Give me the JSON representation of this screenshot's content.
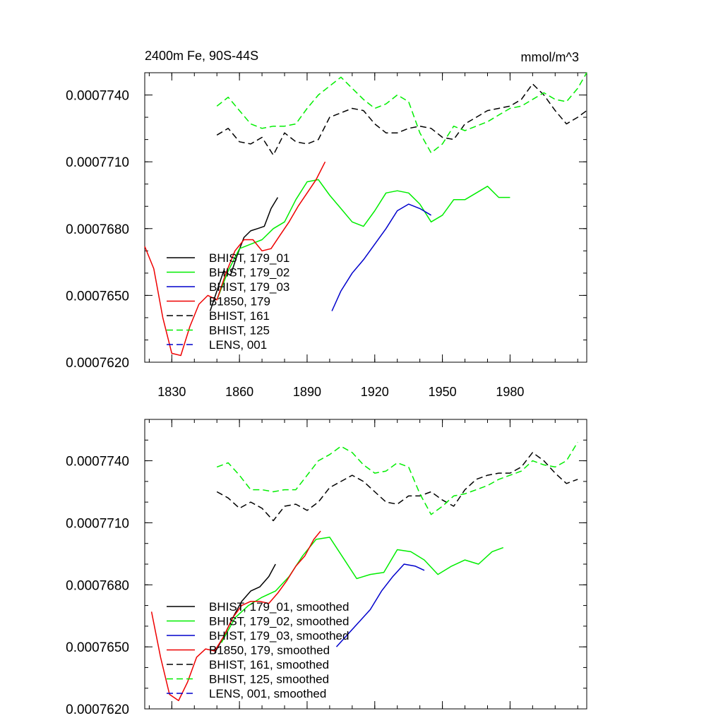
{
  "figure": {
    "title_left": "2400m Fe, 90S-44S",
    "title_right": "mmol/m^3"
  },
  "chart_data": [
    {
      "type": "line",
      "title": "2400m Fe, 90S-44S",
      "units": "mmol/m^3",
      "xlim": [
        1818,
        2014
      ],
      "ylim": [
        0.000762,
        0.000775
      ],
      "xticks": [
        1830,
        1860,
        1890,
        1920,
        1950,
        1980
      ],
      "xtick_labels": [
        "1830",
        "1860",
        "1890",
        "1920",
        "1950",
        "1980"
      ],
      "yticks": [
        0.000762,
        0.000765,
        0.000768,
        0.000771,
        0.000774
      ],
      "ytick_labels": [
        "0.0007620",
        "0.0007650",
        "0.0007680",
        "0.0007710",
        "0.0007740"
      ],
      "legend": "bottom-left",
      "series": [
        {
          "name": "BHIST, 179_01",
          "color": "#000000",
          "dash": "solid",
          "x": [
            1847,
            1850,
            1853,
            1856,
            1859,
            1862,
            1865,
            1868,
            1871,
            1874,
            1877
          ],
          "y": [
            0.0007643,
            0.0007652,
            0.0007661,
            0.0007659,
            0.0007668,
            0.0007676,
            0.0007679,
            0.000768,
            0.0007681,
            0.0007689,
            0.0007694
          ]
        },
        {
          "name": "BHIST, 179_02",
          "color": "#00ee00",
          "dash": "solid",
          "x": [
            1850,
            1855,
            1860,
            1865,
            1870,
            1875,
            1880,
            1885,
            1890,
            1895,
            1900,
            1905,
            1910,
            1915,
            1920,
            1925,
            1930,
            1935,
            1940,
            1945,
            1950,
            1955,
            1960,
            1965,
            1970,
            1975,
            1980
          ],
          "y": [
            0.0007648,
            0.0007661,
            0.0007671,
            0.0007673,
            0.0007675,
            0.000768,
            0.0007683,
            0.0007693,
            0.0007701,
            0.0007702,
            0.0007695,
            0.0007689,
            0.0007683,
            0.0007681,
            0.0007688,
            0.0007696,
            0.0007697,
            0.0007696,
            0.0007691,
            0.0007683,
            0.0007686,
            0.0007693,
            0.0007693,
            0.0007696,
            0.0007699,
            0.0007694,
            0.0007694
          ]
        },
        {
          "name": "BHIST, 179_03",
          "color": "#0000cc",
          "dash": "solid",
          "x": [
            1901,
            1905,
            1910,
            1915,
            1920,
            1925,
            1930,
            1935,
            1940,
            1945
          ],
          "y": [
            0.0007643,
            0.0007652,
            0.000766,
            0.0007666,
            0.0007673,
            0.000768,
            0.0007688,
            0.0007691,
            0.0007689,
            0.0007686
          ]
        },
        {
          "name": "B1850, 179",
          "color": "#ee0000",
          "dash": "solid",
          "x": [
            1818,
            1822,
            1826,
            1830,
            1834,
            1838,
            1842,
            1846,
            1850,
            1854,
            1858,
            1862,
            1866,
            1870,
            1874,
            1878,
            1882,
            1886,
            1890,
            1894,
            1898
          ],
          "y": [
            0.0007672,
            0.0007662,
            0.000764,
            0.0007624,
            0.0007623,
            0.0007636,
            0.0007646,
            0.000765,
            0.0007648,
            0.000766,
            0.000767,
            0.0007675,
            0.0007675,
            0.000767,
            0.0007671,
            0.0007677,
            0.0007683,
            0.000769,
            0.0007696,
            0.0007702,
            0.000771
          ]
        },
        {
          "name": "BHIST, 161",
          "color": "#000000",
          "dash": "dashed",
          "x": [
            1850,
            1855,
            1860,
            1865,
            1870,
            1875,
            1880,
            1885,
            1890,
            1895,
            1900,
            1905,
            1910,
            1915,
            1920,
            1925,
            1930,
            1935,
            1940,
            1945,
            1950,
            1955,
            1960,
            1965,
            1970,
            1975,
            1980,
            1985,
            1990,
            1995,
            2000,
            2005,
            2010,
            2014
          ],
          "y": [
            0.0007722,
            0.0007725,
            0.0007719,
            0.0007718,
            0.0007721,
            0.0007713,
            0.0007723,
            0.0007719,
            0.0007718,
            0.000772,
            0.000773,
            0.0007732,
            0.0007734,
            0.0007733,
            0.0007727,
            0.0007723,
            0.0007723,
            0.0007725,
            0.0007726,
            0.0007725,
            0.0007721,
            0.000772,
            0.0007727,
            0.000773,
            0.0007733,
            0.0007734,
            0.0007735,
            0.0007738,
            0.0007745,
            0.000774,
            0.0007733,
            0.0007727,
            0.000773,
            0.0007733
          ]
        },
        {
          "name": "BHIST, 125",
          "color": "#00ee00",
          "dash": "dashed",
          "x": [
            1850,
            1855,
            1860,
            1865,
            1870,
            1875,
            1880,
            1885,
            1890,
            1895,
            1900,
            1905,
            1910,
            1915,
            1920,
            1925,
            1930,
            1935,
            1940,
            1945,
            1950,
            1955,
            1960,
            1965,
            1970,
            1975,
            1980,
            1985,
            1990,
            1995,
            2000,
            2005,
            2010,
            2014
          ],
          "y": [
            0.0007735,
            0.0007739,
            0.0007733,
            0.0007727,
            0.0007725,
            0.0007726,
            0.0007726,
            0.0007727,
            0.0007734,
            0.000774,
            0.0007744,
            0.0007748,
            0.0007743,
            0.0007738,
            0.0007734,
            0.0007736,
            0.000774,
            0.0007737,
            0.0007723,
            0.0007714,
            0.0007718,
            0.0007726,
            0.0007724,
            0.0007726,
            0.0007728,
            0.0007731,
            0.0007734,
            0.0007735,
            0.0007738,
            0.0007741,
            0.0007738,
            0.0007737,
            0.0007743,
            0.000775
          ]
        }
      ],
      "legend_entries": [
        {
          "label": "BHIST, 179_01",
          "color": "#000000",
          "dash": "solid"
        },
        {
          "label": "BHIST, 179_02",
          "color": "#00ee00",
          "dash": "solid"
        },
        {
          "label": "BHIST, 179_03",
          "color": "#0000cc",
          "dash": "solid"
        },
        {
          "label": "B1850, 179",
          "color": "#ee0000",
          "dash": "solid"
        },
        {
          "label": "BHIST, 161",
          "color": "#000000",
          "dash": "dashed"
        },
        {
          "label": "BHIST, 125",
          "color": "#00ee00",
          "dash": "dashed"
        },
        {
          "label": "LENS, 001",
          "color": "#0000cc",
          "dash": "dashed"
        }
      ]
    },
    {
      "type": "line",
      "xlim": [
        1818,
        2014
      ],
      "ylim": [
        0.000762,
        0.000776
      ],
      "xticks": [
        1830,
        1860,
        1890,
        1920,
        1950,
        1980
      ],
      "xtick_labels": [],
      "yticks": [
        0.000762,
        0.000765,
        0.000768,
        0.000771,
        0.000774
      ],
      "ytick_labels": [
        "0.0007620",
        "0.0007650",
        "0.0007680",
        "0.0007710",
        "0.0007740"
      ],
      "legend": "bottom-left",
      "series": [
        {
          "name": "BHIST, 179_01, smoothed",
          "color": "#000000",
          "dash": "solid",
          "x": [
            1849,
            1853,
            1857,
            1861,
            1865,
            1869,
            1873,
            1876
          ],
          "y": [
            0.0007647,
            0.0007655,
            0.0007664,
            0.0007672,
            0.0007677,
            0.0007679,
            0.0007684,
            0.000769
          ]
        },
        {
          "name": "BHIST, 179_02, smoothed",
          "color": "#00ee00",
          "dash": "solid",
          "x": [
            1852,
            1858,
            1864,
            1870,
            1876,
            1882,
            1888,
            1894,
            1900,
            1906,
            1912,
            1918,
            1924,
            1930,
            1936,
            1942,
            1948,
            1954,
            1960,
            1966,
            1972,
            1977
          ],
          "y": [
            0.0007652,
            0.0007664,
            0.000767,
            0.0007674,
            0.0007677,
            0.0007684,
            0.0007694,
            0.0007702,
            0.0007703,
            0.0007693,
            0.0007683,
            0.0007685,
            0.0007686,
            0.0007697,
            0.0007696,
            0.0007692,
            0.0007685,
            0.0007689,
            0.0007692,
            0.000769,
            0.0007696,
            0.0007698
          ]
        },
        {
          "name": "BHIST, 179_03, smoothed",
          "color": "#0000cc",
          "dash": "solid",
          "x": [
            1903,
            1908,
            1913,
            1918,
            1923,
            1928,
            1933,
            1938,
            1942
          ],
          "y": [
            0.000765,
            0.0007656,
            0.0007662,
            0.0007668,
            0.0007677,
            0.0007684,
            0.000769,
            0.0007689,
            0.0007687
          ]
        },
        {
          "name": "B1850, 179, smoothed",
          "color": "#ee0000",
          "dash": "solid",
          "x": [
            1821,
            1825,
            1829,
            1833,
            1837,
            1841,
            1845,
            1849,
            1853,
            1857,
            1861,
            1865,
            1869,
            1873,
            1877,
            1881,
            1885,
            1889,
            1893,
            1896
          ],
          "y": [
            0.0007667,
            0.0007645,
            0.0007627,
            0.0007624,
            0.0007633,
            0.0007645,
            0.0007649,
            0.0007648,
            0.0007655,
            0.0007664,
            0.000767,
            0.0007672,
            0.0007672,
            0.0007671,
            0.0007676,
            0.0007682,
            0.0007689,
            0.0007694,
            0.0007702,
            0.0007706
          ]
        },
        {
          "name": "BHIST, 161, smoothed",
          "color": "#000000",
          "dash": "dashed",
          "x": [
            1850,
            1855,
            1860,
            1865,
            1870,
            1875,
            1880,
            1885,
            1890,
            1895,
            1900,
            1905,
            1910,
            1915,
            1920,
            1925,
            1930,
            1935,
            1940,
            1945,
            1950,
            1955,
            1960,
            1965,
            1970,
            1975,
            1980,
            1985,
            1990,
            1995,
            2000,
            2005,
            2010
          ],
          "y": [
            0.0007725,
            0.0007722,
            0.0007717,
            0.000772,
            0.0007717,
            0.0007711,
            0.0007718,
            0.0007719,
            0.0007716,
            0.000772,
            0.0007727,
            0.000773,
            0.0007733,
            0.000773,
            0.0007725,
            0.000772,
            0.0007719,
            0.0007723,
            0.0007723,
            0.0007725,
            0.0007721,
            0.0007718,
            0.0007726,
            0.0007731,
            0.0007733,
            0.0007734,
            0.0007734,
            0.0007737,
            0.0007744,
            0.000774,
            0.0007734,
            0.0007729,
            0.0007731
          ]
        },
        {
          "name": "BHIST, 125, smoothed",
          "color": "#00ee00",
          "dash": "dashed",
          "x": [
            1850,
            1855,
            1860,
            1865,
            1870,
            1875,
            1880,
            1885,
            1890,
            1895,
            1900,
            1905,
            1910,
            1915,
            1920,
            1925,
            1930,
            1935,
            1940,
            1945,
            1950,
            1955,
            1960,
            1965,
            1970,
            1975,
            1980,
            1985,
            1990,
            1995,
            2000,
            2005,
            2010
          ],
          "y": [
            0.0007737,
            0.0007739,
            0.0007733,
            0.0007726,
            0.0007726,
            0.0007725,
            0.0007726,
            0.0007726,
            0.0007733,
            0.000774,
            0.0007743,
            0.0007747,
            0.0007744,
            0.0007738,
            0.0007734,
            0.0007735,
            0.0007739,
            0.0007737,
            0.0007724,
            0.0007714,
            0.0007718,
            0.0007723,
            0.0007724,
            0.0007726,
            0.0007728,
            0.0007731,
            0.0007733,
            0.0007735,
            0.000774,
            0.0007738,
            0.0007737,
            0.000774,
            0.0007749
          ]
        }
      ],
      "legend_entries": [
        {
          "label": "BHIST, 179_01, smoothed",
          "color": "#000000",
          "dash": "solid"
        },
        {
          "label": "BHIST, 179_02, smoothed",
          "color": "#00ee00",
          "dash": "solid"
        },
        {
          "label": "BHIST, 179_03, smoothed",
          "color": "#0000cc",
          "dash": "solid"
        },
        {
          "label": "B1850, 179, smoothed",
          "color": "#ee0000",
          "dash": "solid"
        },
        {
          "label": "BHIST, 161, smoothed",
          "color": "#000000",
          "dash": "dashed"
        },
        {
          "label": "BHIST, 125, smoothed",
          "color": "#00ee00",
          "dash": "dashed"
        },
        {
          "label": "LENS, 001, smoothed",
          "color": "#0000cc",
          "dash": "dashed"
        }
      ]
    }
  ]
}
